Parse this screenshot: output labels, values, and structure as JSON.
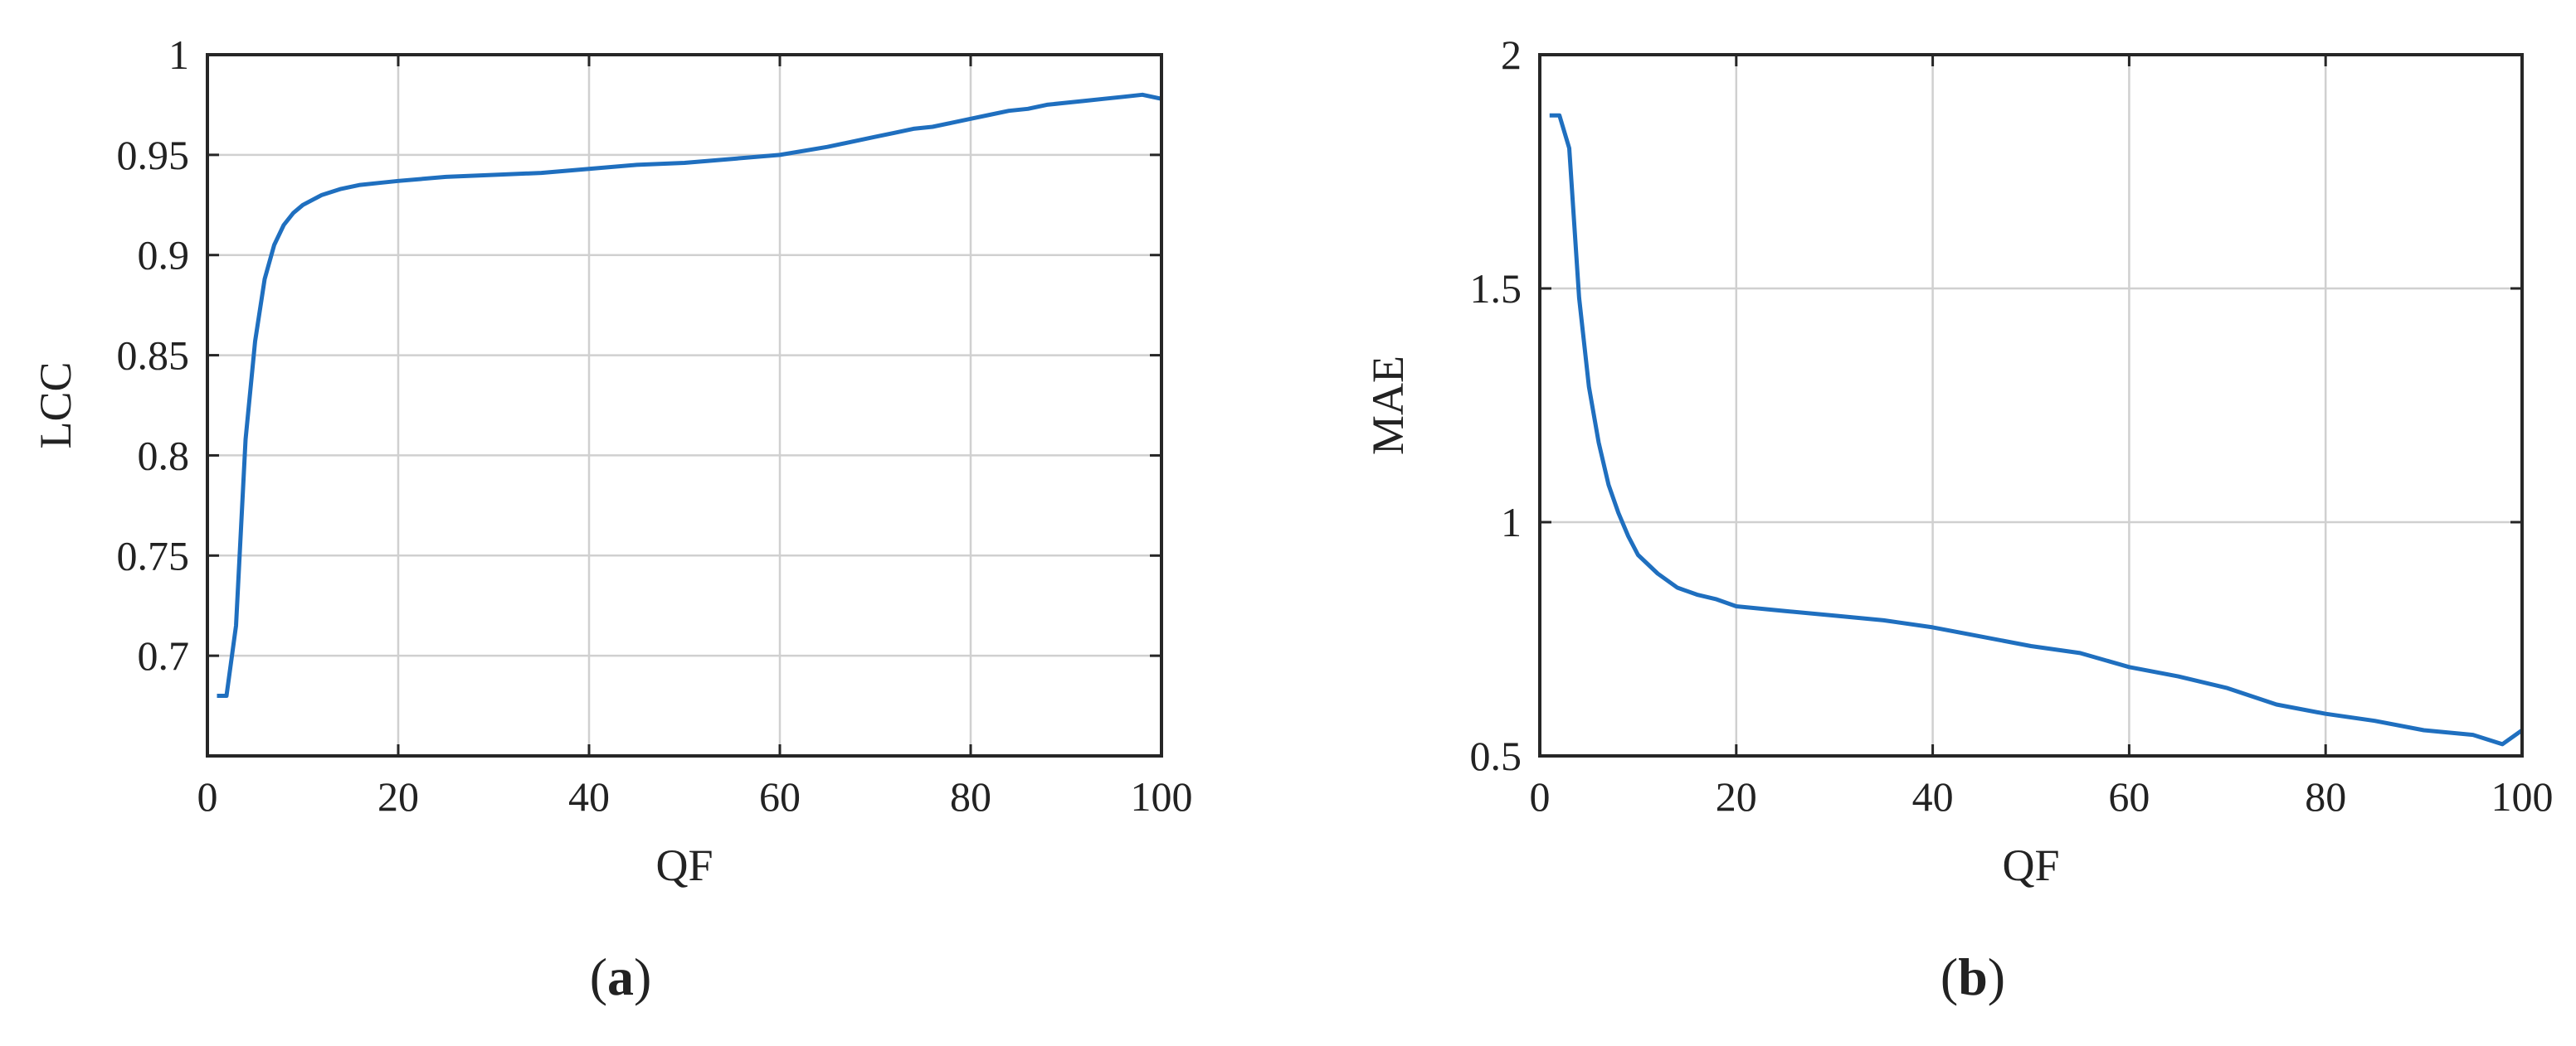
{
  "line_color": "#1f6fbf",
  "grid_color": "#d0d0d0",
  "chart_data": [
    {
      "type": "line",
      "caption_letter": "a",
      "xlabel": "QF",
      "ylabel": "LCC",
      "xlim": [
        0,
        100
      ],
      "ylim": [
        0.65,
        1.0
      ],
      "xticks": [
        0,
        20,
        40,
        60,
        80,
        100
      ],
      "xtick_labels": [
        "0",
        "20",
        "40",
        "60",
        "80",
        "100"
      ],
      "yticks": [
        0.7,
        0.75,
        0.8,
        0.85,
        0.9,
        0.95,
        1.0
      ],
      "ytick_labels": [
        "0.7",
        "0.75",
        "0.8",
        "0.85",
        "0.9",
        "0.95",
        "1"
      ],
      "grid": true,
      "x": [
        1,
        2,
        3,
        4,
        5,
        6,
        7,
        8,
        9,
        10,
        12,
        14,
        16,
        18,
        20,
        25,
        30,
        35,
        40,
        45,
        50,
        55,
        60,
        65,
        70,
        72,
        74,
        76,
        78,
        80,
        82,
        84,
        86,
        88,
        90,
        92,
        94,
        96,
        98,
        100
      ],
      "y": [
        0.68,
        0.68,
        0.715,
        0.808,
        0.857,
        0.888,
        0.905,
        0.915,
        0.921,
        0.925,
        0.93,
        0.933,
        0.935,
        0.936,
        0.937,
        0.939,
        0.94,
        0.941,
        0.943,
        0.945,
        0.946,
        0.948,
        0.95,
        0.954,
        0.959,
        0.961,
        0.963,
        0.964,
        0.966,
        0.968,
        0.97,
        0.972,
        0.973,
        0.975,
        0.976,
        0.977,
        0.978,
        0.979,
        0.98,
        0.978
      ]
    },
    {
      "type": "line",
      "caption_letter": "b",
      "xlabel": "QF",
      "ylabel": "MAE",
      "xlim": [
        0,
        100
      ],
      "ylim": [
        0.5,
        2.0
      ],
      "xticks": [
        0,
        20,
        40,
        60,
        80,
        100
      ],
      "xtick_labels": [
        "0",
        "20",
        "40",
        "60",
        "80",
        "100"
      ],
      "yticks": [
        0.5,
        1.0,
        1.5,
        2.0
      ],
      "ytick_labels": [
        "0.5",
        "1",
        "1.5",
        "2"
      ],
      "grid": true,
      "x": [
        1,
        2,
        3,
        4,
        5,
        6,
        7,
        8,
        9,
        10,
        12,
        14,
        16,
        18,
        20,
        25,
        30,
        35,
        40,
        45,
        50,
        55,
        60,
        65,
        70,
        75,
        80,
        85,
        90,
        95,
        98,
        100
      ],
      "y": [
        1.87,
        1.87,
        1.8,
        1.48,
        1.29,
        1.17,
        1.08,
        1.02,
        0.97,
        0.93,
        0.89,
        0.86,
        0.845,
        0.835,
        0.82,
        0.81,
        0.8,
        0.79,
        0.775,
        0.755,
        0.735,
        0.72,
        0.69,
        0.67,
        0.645,
        0.61,
        0.59,
        0.575,
        0.555,
        0.545,
        0.525,
        0.555
      ]
    }
  ]
}
